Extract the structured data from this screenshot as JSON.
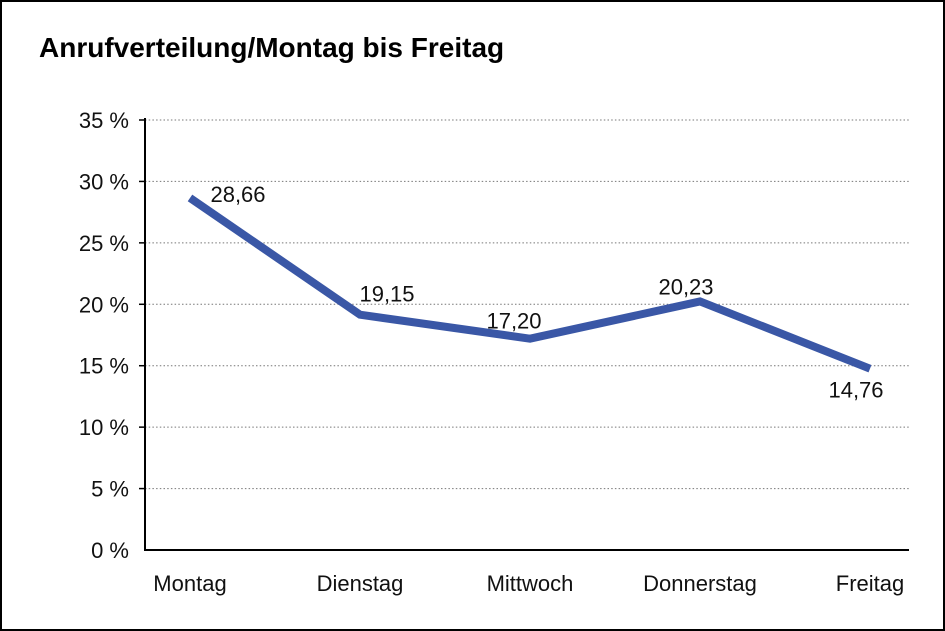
{
  "page": {
    "background": "#ffffff",
    "frame_border_color": "#000000"
  },
  "chart_data": {
    "type": "line",
    "title": "Anrufverteilung/Montag bis Freitag",
    "categories": [
      "Montag",
      "Dienstag",
      "Mittwoch",
      "Donnerstag",
      "Freitag"
    ],
    "series": [
      {
        "name": "Anrufverteilung",
        "values": [
          28.66,
          19.15,
          17.2,
          20.23,
          14.76
        ],
        "value_labels": [
          "28,66",
          "19,15",
          "17,20",
          "20,23",
          "14,76"
        ],
        "color": "#3A57A6"
      }
    ],
    "xlabel": "",
    "ylabel": "",
    "ylim": [
      0,
      35
    ],
    "y_tick_step": 5,
    "y_tick_labels": [
      "0 %",
      "5 %",
      "10 %",
      "15 %",
      "20 %",
      "25 %",
      "30 %",
      "35 %"
    ],
    "grid": "horizontal-dotted",
    "grid_color": "#777777",
    "axis_color": "#000000",
    "legend": "none"
  }
}
